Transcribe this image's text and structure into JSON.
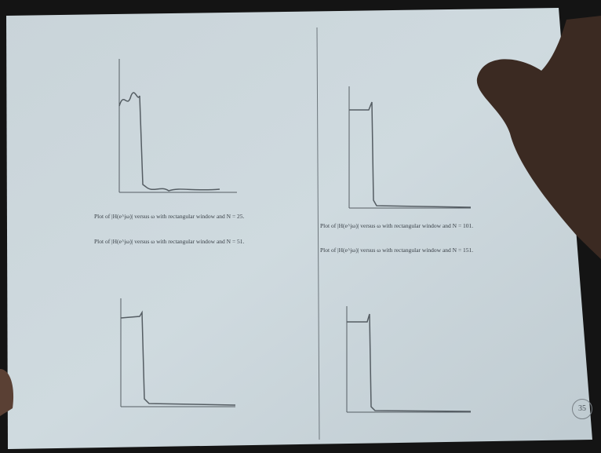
{
  "captions": [
    "Plot of |H(e^jω)| versus ω with rectangular window and N = 25.",
    "Plot of |H(e^jω)| versus ω with rectangular window and N = 51.",
    "Plot of |H(e^jω)| versus ω with rectangular window and N = 101.",
    "Plot of |H(e^jω)| versus ω with rectangular window and N = 151."
  ],
  "page_number": "35"
}
